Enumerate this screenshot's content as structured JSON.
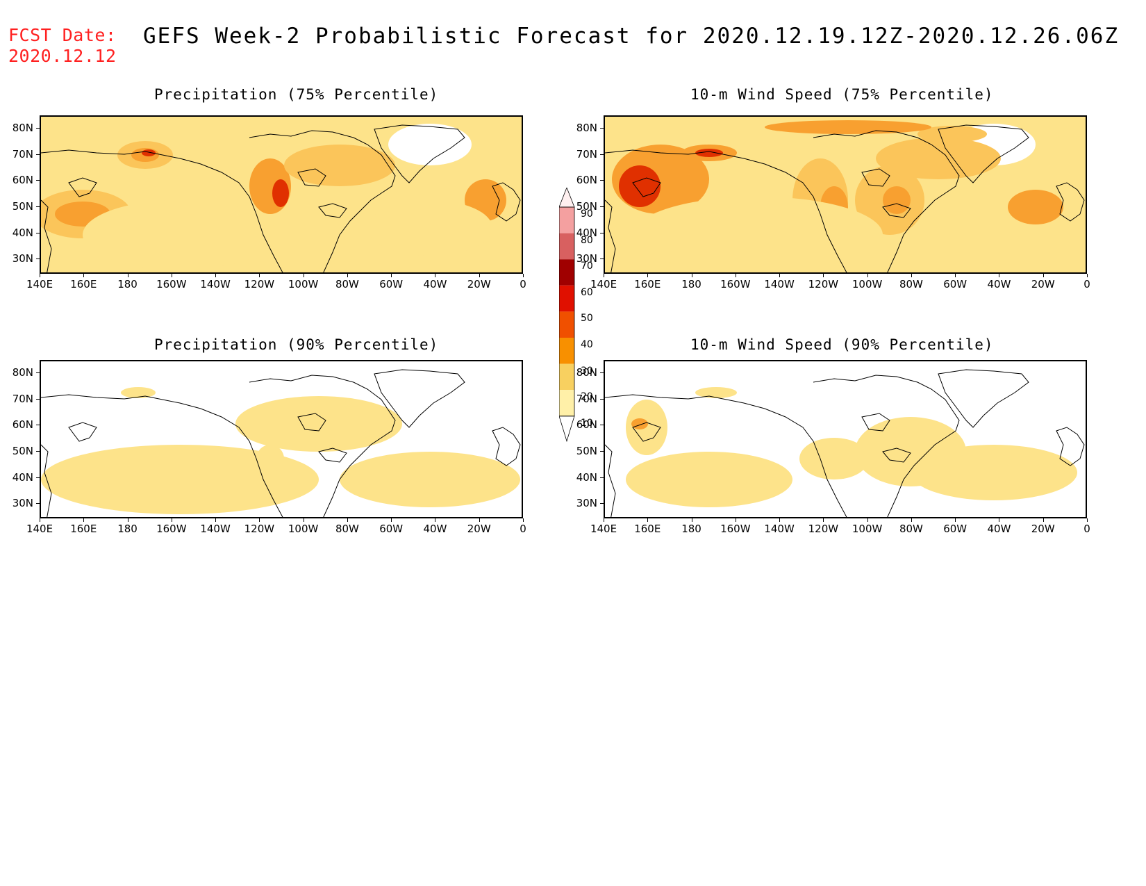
{
  "header": {
    "fcst_label": "FCST Date:",
    "fcst_date": "2020.12.12",
    "title": "GEFS Week-2 Probabilistic Forecast for 2020.12.19.12Z-2020.12.26.06Z"
  },
  "panels": [
    {
      "title": "Precipitation (75% Percentile)"
    },
    {
      "title": "10-m Wind Speed (75% Percentile)"
    },
    {
      "title": "Precipitation (90% Percentile)"
    },
    {
      "title": "10-m Wind Speed (90% Percentile)"
    }
  ],
  "axes": {
    "lat_labels": [
      "80N",
      "70N",
      "60N",
      "50N",
      "40N",
      "30N"
    ],
    "lon_labels": [
      "140E",
      "160E",
      "180",
      "160W",
      "140W",
      "120W",
      "100W",
      "80W",
      "60W",
      "40W",
      "20W",
      "0"
    ]
  },
  "colorbar": {
    "levels": [
      "90",
      "80",
      "70",
      "60",
      "50",
      "40",
      "30",
      "20",
      "10"
    ],
    "colors": [
      "#f4a0a0",
      "#d86060",
      "#a00000",
      "#e01000",
      "#f05000",
      "#f89000",
      "#f8d060",
      "#fff0a8"
    ]
  },
  "map_colors": {
    "low": "#fff5c0",
    "mid": "#fde38a",
    "high": "#fbc55a",
    "orange": "#f8a030",
    "red": "#e03000",
    "dark": "#a00000",
    "white": "#ffffff"
  }
}
